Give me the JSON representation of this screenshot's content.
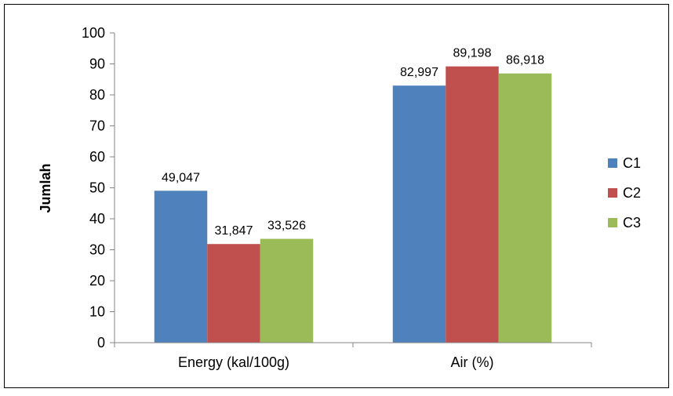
{
  "chart_data": {
    "type": "bar",
    "categories": [
      "Energy (kal/100g)",
      "Air (%)"
    ],
    "series": [
      {
        "name": "C1",
        "values": [
          49.047,
          82.997
        ],
        "labels": [
          "49,047",
          "82,997"
        ]
      },
      {
        "name": "C2",
        "values": [
          31.847,
          89.198
        ],
        "labels": [
          "31,847",
          "89,198"
        ]
      },
      {
        "name": "C3",
        "values": [
          33.526,
          86.918
        ],
        "labels": [
          "33,526",
          "86,918"
        ]
      }
    ],
    "colors": [
      "#4f81bd",
      "#c0504d",
      "#9bbb59"
    ],
    "ylabel": "Jumlah",
    "xlabel": "",
    "ylim": [
      0,
      100
    ],
    "yticks": [
      0,
      10,
      20,
      30,
      40,
      50,
      60,
      70,
      80,
      90,
      100
    ],
    "grid": false,
    "legend_position": "right"
  }
}
